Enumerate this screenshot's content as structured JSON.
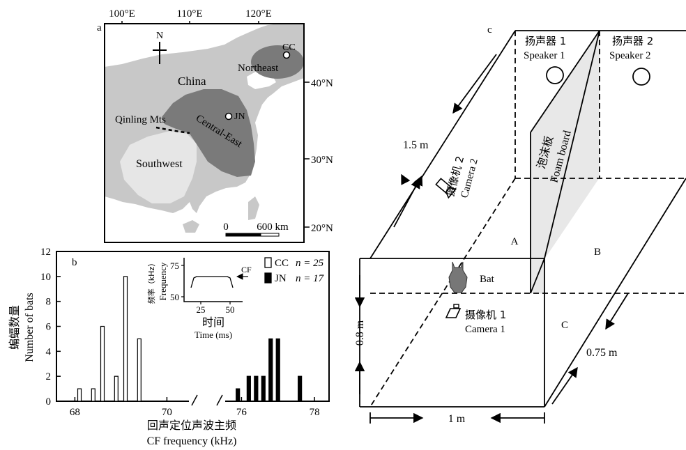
{
  "panel_a": {
    "label": "a",
    "lon_labels": [
      "100°E",
      "110°E",
      "120°E"
    ],
    "lat_labels": [
      "40°N",
      "30°N",
      "20°N"
    ],
    "north": "N",
    "china": "China",
    "northeast": "Northeast",
    "cc": "CC",
    "jn": "JN",
    "qinling": "Qinling Mts",
    "central_east": "Central-East",
    "southwest": "Southwest",
    "scale_zero": "0",
    "scale_label": "600 km",
    "colors": {
      "land": "#c8c8c8",
      "southwest": "#e6e6e6",
      "region": "#7a7a7a"
    }
  },
  "panel_b": {
    "label": "b",
    "ylabel_cn": "蝙蝠数量",
    "ylabel_en": "Number of bats",
    "xlabel_cn": "回声定位声波主频",
    "xlabel_en": "CF frequency (kHz)",
    "legend": [
      {
        "name": "CC",
        "n": "n = 25",
        "fill": "#ffffff"
      },
      {
        "name": "JN",
        "n": "n = 17",
        "fill": "#000000"
      }
    ],
    "inset": {
      "ylabel_cn": "频率（kHz）",
      "ylabel_en": "Frequency",
      "xlabel_cn": "时间",
      "xlabel_en": "Time (ms)",
      "cf": "CF",
      "y_ticks": [
        "75",
        "50"
      ],
      "x_ticks": [
        "25",
        "50"
      ]
    }
  },
  "chart_data": {
    "type": "bar",
    "xlabel": "CF frequency (kHz)",
    "ylabel": "Number of bats",
    "ylim": [
      0,
      12
    ],
    "y_ticks": [
      "0",
      "2",
      "4",
      "6",
      "8",
      "10",
      "12"
    ],
    "x_ticks": [
      "68",
      "70",
      "76",
      "78"
    ],
    "axis_break": [
      70.6,
      75.4
    ],
    "series": [
      {
        "name": "CC",
        "x": [
          68.1,
          68.4,
          68.6,
          68.9,
          69.1,
          69.4
        ],
        "values": [
          1,
          1,
          6,
          2,
          10,
          5
        ]
      },
      {
        "name": "JN",
        "x": [
          75.9,
          76.2,
          76.4,
          76.6,
          76.8,
          77.0,
          77.6
        ],
        "values": [
          1,
          2,
          2,
          2,
          5,
          5,
          2
        ]
      }
    ]
  },
  "panel_c": {
    "label": "c",
    "speaker1_cn": "扬声器 1",
    "speaker1_en": "Speaker 1",
    "speaker2_cn": "扬声器 2",
    "speaker2_en": "Speaker 2",
    "foam_cn": "泡沫板",
    "foam_en": "Foam board",
    "camera2_cn": "摄像机 2",
    "camera2_en": "Camera 2",
    "camera1_cn": "摄像机 1",
    "camera1_en": "Camera 1",
    "zone_a": "A",
    "zone_b": "B",
    "zone_c": "C",
    "bat": "Bat",
    "dim_length": "1.5 m",
    "dim_height": "0.8 m",
    "dim_depth": "0.75 m",
    "dim_width": "1 m"
  }
}
